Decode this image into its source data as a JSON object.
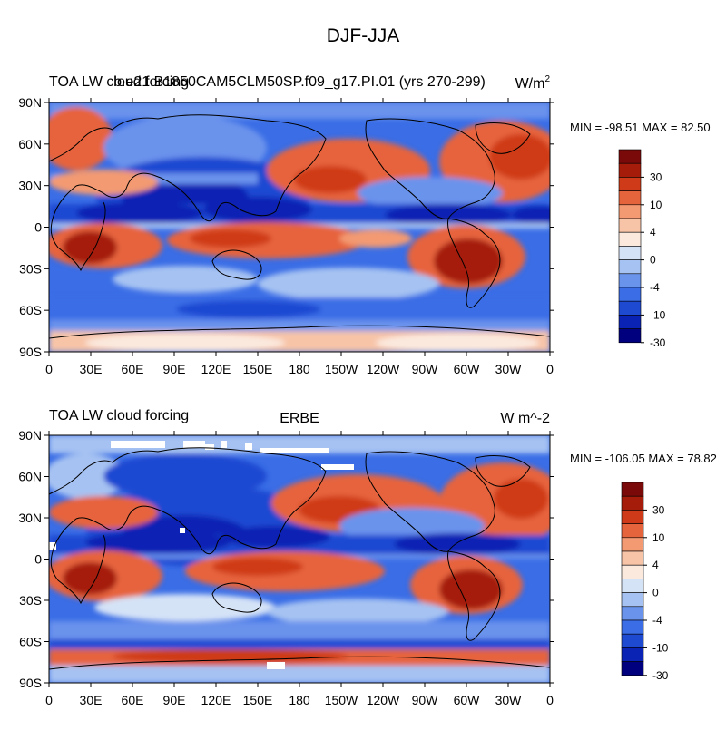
{
  "figure_title": "DJF-JJA",
  "colorscale": {
    "colors": [
      "#00007f",
      "#0a23b4",
      "#1e4ad2",
      "#3a6de6",
      "#6a93ec",
      "#a6c2f2",
      "#d5e3f7",
      "#fbe9de",
      "#f7c4a8",
      "#f39a72",
      "#e6643c",
      "#cf3a18",
      "#a51c0a",
      "#7a0a0a"
    ],
    "labels": [
      "-30",
      "-10",
      "-4",
      "0",
      "4",
      "10",
      "30"
    ]
  },
  "panels": [
    {
      "left_title": "TOA LW cloud forcing",
      "center_title": "b.e21.B1850CAM5CLM50SP.f09_g17.PI.01 (yrs 270-299)",
      "units": "W/m",
      "units_sup": "2",
      "stats": "MIN = -98.51 MAX =  82.50",
      "field": {
        "min": -98.51,
        "max": 82.5
      }
    },
    {
      "left_title": "TOA LW cloud forcing",
      "center_title": "ERBE",
      "units": "W m^-2",
      "units_sup": "",
      "stats": "MIN = -106.05 MAX =  78.82",
      "field": {
        "min": -106.05,
        "max": 78.82
      }
    }
  ],
  "axes": {
    "lat_labels": [
      "90N",
      "60N",
      "30N",
      "0",
      "30S",
      "60S",
      "90S"
    ],
    "lon_labels": [
      "0",
      "30E",
      "60E",
      "90E",
      "120E",
      "150E",
      "180",
      "150W",
      "120W",
      "90W",
      "60W",
      "30W",
      "0"
    ]
  }
}
